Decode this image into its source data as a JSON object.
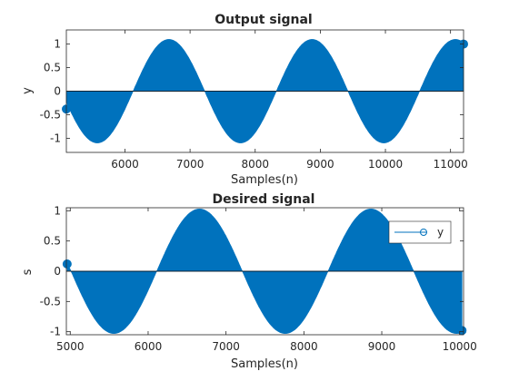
{
  "chart_data": [
    {
      "type": "stem",
      "title": "Output signal",
      "xlabel": "Samples(n)",
      "ylabel": "y",
      "xlim": [
        5100,
        11200
      ],
      "ylim": [
        -1.3,
        1.3
      ],
      "xticks": [
        6000,
        7000,
        8000,
        9000,
        10000,
        11000
      ],
      "yticks": [
        -1,
        -0.5,
        0,
        0.5,
        1
      ],
      "ytick_labels": [
        "-1",
        "-0.5",
        "0",
        "0.5",
        "1"
      ],
      "grid": false,
      "series": [
        {
          "color": "#0072bd",
          "marker": "circle",
          "envelope": "1.1*sin(2*pi*(n-6125)/2200)",
          "x_start": 5100,
          "x_end": 11200,
          "endpoints": [
            [
              5100,
              -0.38
            ],
            [
              11200,
              1.0
            ]
          ]
        }
      ]
    },
    {
      "type": "stem",
      "title": "Desired signal",
      "xlabel": "Samples(n)",
      "ylabel": "s",
      "xlim": [
        4950,
        10050
      ],
      "ylim": [
        -1.05,
        1.05
      ],
      "xticks": [
        5000,
        6000,
        7000,
        8000,
        9000,
        10000
      ],
      "yticks": [
        -1,
        -0.5,
        0,
        0.5,
        1
      ],
      "ytick_labels": [
        "-1",
        "-0.5",
        "0",
        "0.5",
        "1"
      ],
      "grid": false,
      "legend": {
        "placement": "top-right",
        "entries": [
          "y"
        ]
      },
      "series": [
        {
          "name": "y",
          "color": "#0072bd",
          "marker": "circle",
          "envelope": "1.03*sin(2*pi*(n-6110)/2200)",
          "x_start": 4960,
          "x_end": 10030,
          "endpoints": [
            [
              4960,
              0.12
            ],
            [
              10030,
              -0.98
            ]
          ]
        }
      ]
    }
  ]
}
